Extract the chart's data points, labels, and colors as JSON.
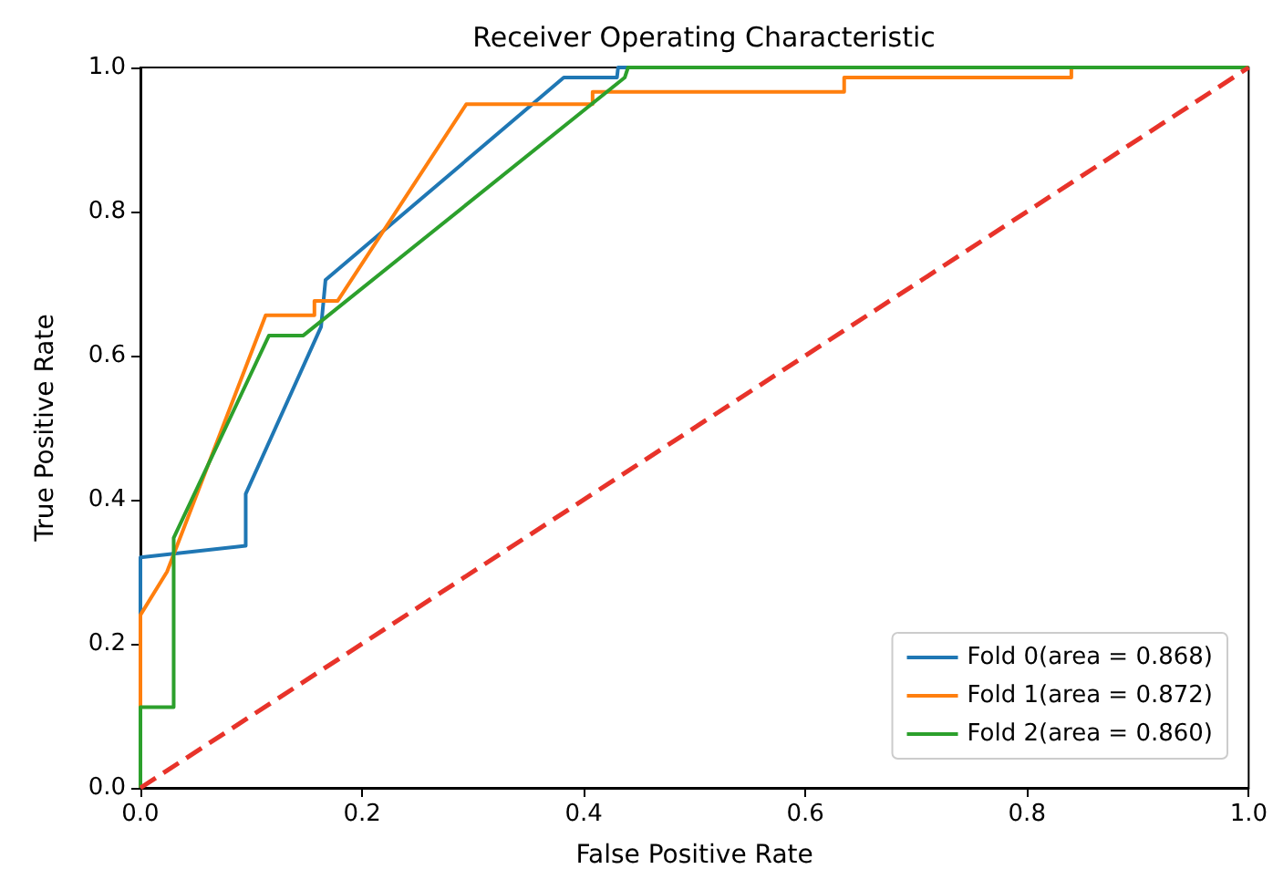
{
  "chart_data": {
    "type": "line",
    "title": "Receiver Operating Characteristic",
    "xlabel": "False Positive Rate",
    "ylabel": "True Positive Rate",
    "series": [
      {
        "name": "Fold 0(area = 0.868)",
        "color": "#1f77b4",
        "x": [
          0,
          0,
          0.095,
          0.095,
          0.163,
          0.167,
          0.382,
          0.43,
          0.431,
          1
        ],
        "values": [
          0,
          0.32,
          0.336,
          0.408,
          0.64,
          0.705,
          0.986,
          0.986,
          1,
          1
        ]
      },
      {
        "name": "Fold 1(area = 0.872)",
        "color": "#ff7f0e",
        "x": [
          0,
          0,
          0.024,
          0.113,
          0.157,
          0.157,
          0.178,
          0.294,
          0.408,
          0.408,
          0.635,
          0.635,
          0.84,
          0.84,
          1
        ],
        "values": [
          0,
          0.24,
          0.3,
          0.656,
          0.656,
          0.676,
          0.676,
          0.949,
          0.949,
          0.966,
          0.966,
          0.986,
          0.986,
          1,
          1
        ]
      },
      {
        "name": "Fold 2(area = 0.860)",
        "color": "#2ca02c",
        "x": [
          0,
          0,
          0.03,
          0.03,
          0.116,
          0.147,
          0.437,
          0.44,
          1
        ],
        "values": [
          0,
          0.112,
          0.112,
          0.347,
          0.628,
          0.628,
          0.986,
          1,
          1
        ]
      },
      {
        "color": "#e8332a",
        "line_style": "dashed",
        "x": [
          0,
          1
        ],
        "values": [
          0,
          1
        ]
      }
    ],
    "xlim": [
      0,
      1
    ],
    "ylim": [
      0,
      1
    ],
    "xticks": [
      {
        "value": 0,
        "label": "0.0"
      },
      {
        "value": 0.2,
        "label": "0.2"
      },
      {
        "value": 0.4,
        "label": "0.4"
      },
      {
        "value": 0.6,
        "label": "0.6"
      },
      {
        "value": 0.8,
        "label": "0.8"
      },
      {
        "value": 1,
        "label": "1.0"
      }
    ],
    "yticks": [
      {
        "value": 0,
        "label": "0.0"
      },
      {
        "value": 0.2,
        "label": "0.2"
      },
      {
        "value": 0.4,
        "label": "0.4"
      },
      {
        "value": 0.6,
        "label": "0.6"
      },
      {
        "value": 0.8,
        "label": "0.8"
      },
      {
        "value": 1,
        "label": "1.0"
      }
    ],
    "grid": false,
    "legend": "bottom right",
    "marker": "none",
    "line_style": "solid"
  }
}
